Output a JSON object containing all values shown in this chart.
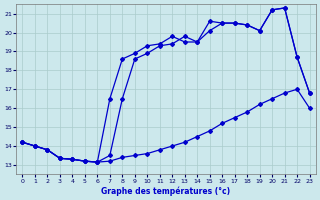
{
  "xlabel": "Graphe des températures (°c)",
  "bg_color": "#cce8ec",
  "grid_color": "#aacccc",
  "line_color": "#0000cc",
  "xlim": [
    -0.5,
    23.5
  ],
  "ylim": [
    12.5,
    21.5
  ],
  "xticks": [
    0,
    1,
    2,
    3,
    4,
    5,
    6,
    7,
    8,
    9,
    10,
    11,
    12,
    13,
    14,
    15,
    16,
    17,
    18,
    19,
    20,
    21,
    22,
    23
  ],
  "yticks": [
    13,
    14,
    15,
    16,
    17,
    18,
    19,
    20,
    21
  ],
  "line1_x": [
    0,
    1,
    2,
    3,
    4,
    5,
    6,
    7,
    8,
    9,
    10,
    11,
    12,
    13,
    14,
    15,
    16,
    17,
    18,
    19,
    20,
    21,
    22,
    23
  ],
  "line1_y": [
    14.2,
    14.0,
    13.8,
    13.35,
    13.3,
    13.2,
    13.15,
    13.2,
    13.4,
    13.5,
    13.6,
    13.8,
    14.0,
    14.2,
    14.5,
    14.8,
    15.2,
    15.5,
    15.8,
    16.2,
    16.5,
    16.8,
    17.0,
    16.0
  ],
  "line2_x": [
    0,
    1,
    2,
    3,
    4,
    5,
    6,
    7,
    8,
    9,
    10,
    11,
    12,
    13,
    14,
    15,
    16,
    17,
    18,
    19,
    20,
    21,
    22,
    23
  ],
  "line2_y": [
    14.2,
    14.0,
    13.8,
    13.35,
    13.3,
    13.2,
    13.15,
    16.5,
    18.6,
    18.9,
    19.3,
    19.4,
    19.8,
    19.5,
    19.5,
    20.6,
    20.5,
    20.5,
    20.4,
    20.1,
    21.2,
    21.3,
    18.7,
    16.8
  ],
  "line3_x": [
    0,
    1,
    2,
    3,
    4,
    5,
    6,
    7,
    8,
    9,
    10,
    11,
    12,
    13,
    14,
    15,
    16,
    17,
    18,
    19,
    20,
    21,
    22,
    23
  ],
  "line3_y": [
    14.2,
    14.0,
    13.8,
    13.35,
    13.3,
    13.2,
    13.15,
    13.5,
    16.5,
    18.6,
    18.9,
    19.3,
    19.4,
    19.8,
    19.5,
    20.1,
    20.5,
    20.5,
    20.4,
    20.1,
    21.2,
    21.3,
    18.7,
    16.8
  ]
}
